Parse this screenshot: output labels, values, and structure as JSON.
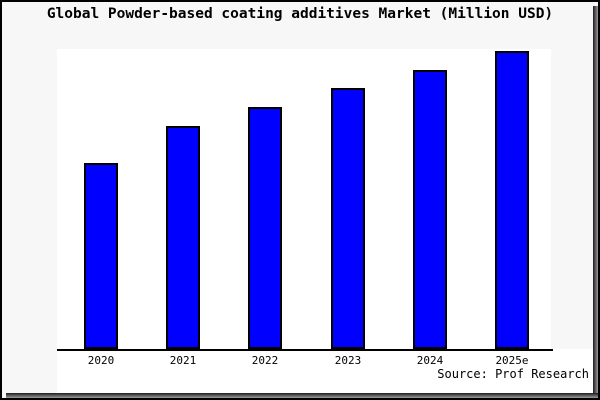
{
  "title": "Global Powder-based coating additives Market (Million USD)",
  "source": "Source: Prof Research",
  "colors": {
    "bar_fill": "#0000ff",
    "bar_border": "#000000",
    "figure_background": "#f7f7f7",
    "plot_background": "#ffffff",
    "axis_line": "#000000",
    "text": "#000000"
  },
  "chart_data": {
    "type": "bar",
    "title": "Global Powder-based coating additives Market (Million USD)",
    "categories": [
      "2020",
      "2021",
      "2022",
      "2023",
      "2024",
      "2025e"
    ],
    "values": [
      62.5,
      74.9,
      81.3,
      87.7,
      93.6,
      100
    ],
    "unit": "relative index (no y-axis scale shown; 2025e bar = 100)",
    "xlabel": "",
    "ylabel": "",
    "ylim": [
      0,
      100
    ],
    "grid": false,
    "legend": false,
    "y_axis_ticks_visible": false,
    "annotation": "Source: Prof Research"
  }
}
